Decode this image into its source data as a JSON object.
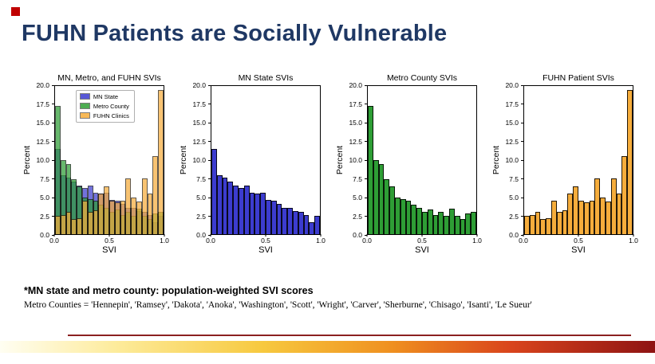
{
  "slide": {
    "title": "FUHN Patients are Socially Vulnerable",
    "footnote_bold": "*MN state and metro county: population-weighted SVI scores",
    "footnote": "Metro Counties = 'Hennepin', 'Ramsey', 'Dakota', 'Anoka', 'Washington', 'Scott', 'Wright', 'Carver', 'Sherburne', 'Chisago', 'Isanti', 'Le Sueur'"
  },
  "colors": {
    "mn_state": "#3c3ccf",
    "metro_county": "#2e9e35",
    "fuhn_clinics": "#f6ad3c",
    "title_text": "#1f3864",
    "accent_square": "#c00000",
    "bar_edge": "#000000",
    "divider": "#8b2020"
  },
  "axes": {
    "ylabel": "Percent",
    "xlabel": "SVI",
    "ymax": 20,
    "yticks": [
      "20.0",
      "17.5",
      "15.0",
      "12.5",
      "10.0",
      "7.5",
      "5.0",
      "2.5",
      "0.0"
    ],
    "xticks": [
      "0.0",
      "0.5",
      "1.0"
    ],
    "xlim": [
      0,
      1
    ],
    "bin_width": 0.05,
    "grid": false
  },
  "chart_data": [
    {
      "type": "bar",
      "title": "MN, Metro, and FUHN SVIs",
      "xlabel": "SVI",
      "ylabel": "Percent",
      "ylim": [
        0,
        20
      ],
      "legend_position": "upper-left",
      "legend": [
        "MN State",
        "Metro County",
        "FUHN Clinics"
      ],
      "series": [
        {
          "name": "MN State",
          "color_key": "mn_state",
          "values": [
            11.5,
            8.0,
            7.6,
            7.1,
            6.6,
            6.2,
            6.6,
            5.6,
            5.5,
            5.6,
            4.6,
            4.5,
            4.1,
            3.6,
            3.5,
            3.1,
            3.0,
            2.6,
            1.6,
            2.5
          ]
        },
        {
          "name": "Metro County",
          "color_key": "metro_county",
          "values": [
            17.3,
            10.0,
            9.5,
            7.4,
            6.4,
            5.0,
            4.7,
            4.5,
            4.0,
            3.5,
            3.0,
            3.3,
            2.6,
            3.0,
            2.5,
            3.4,
            2.5,
            2.0,
            2.8,
            3.0
          ]
        },
        {
          "name": "FUHN Clinics",
          "color_key": "fuhn_clinics",
          "values": [
            2.5,
            2.6,
            3.0,
            2.0,
            2.2,
            4.5,
            3.0,
            3.2,
            5.5,
            6.4,
            4.5,
            4.3,
            4.5,
            7.5,
            5.0,
            4.4,
            7.5,
            5.5,
            10.5,
            19.5
          ]
        }
      ]
    },
    {
      "type": "bar",
      "title": "MN State SVIs",
      "xlabel": "SVI",
      "ylabel": "Percent",
      "ylim": [
        0,
        20
      ],
      "series": [
        {
          "name": "MN State",
          "color_key": "mn_state",
          "values": [
            11.5,
            8.0,
            7.6,
            7.1,
            6.6,
            6.2,
            6.6,
            5.6,
            5.5,
            5.6,
            4.6,
            4.5,
            4.1,
            3.6,
            3.5,
            3.1,
            3.0,
            2.6,
            1.6,
            2.5
          ]
        }
      ]
    },
    {
      "type": "bar",
      "title": "Metro County SVIs",
      "xlabel": "SVI",
      "ylabel": "Percent",
      "ylim": [
        0,
        20
      ],
      "series": [
        {
          "name": "Metro County",
          "color_key": "metro_county",
          "values": [
            17.3,
            10.0,
            9.5,
            7.4,
            6.4,
            5.0,
            4.7,
            4.5,
            4.0,
            3.5,
            3.0,
            3.3,
            2.6,
            3.0,
            2.5,
            3.4,
            2.5,
            2.0,
            2.8,
            3.0
          ]
        }
      ]
    },
    {
      "type": "bar",
      "title": "FUHN Patient SVIs",
      "xlabel": "SVI",
      "ylabel": "Percent",
      "ylim": [
        0,
        20
      ],
      "series": [
        {
          "name": "FUHN Clinics",
          "color_key": "fuhn_clinics",
          "values": [
            2.5,
            2.6,
            3.0,
            2.0,
            2.2,
            4.5,
            3.0,
            3.2,
            5.5,
            6.4,
            4.5,
            4.3,
            4.5,
            7.5,
            5.0,
            4.4,
            7.5,
            5.5,
            10.5,
            19.5
          ]
        }
      ]
    }
  ]
}
